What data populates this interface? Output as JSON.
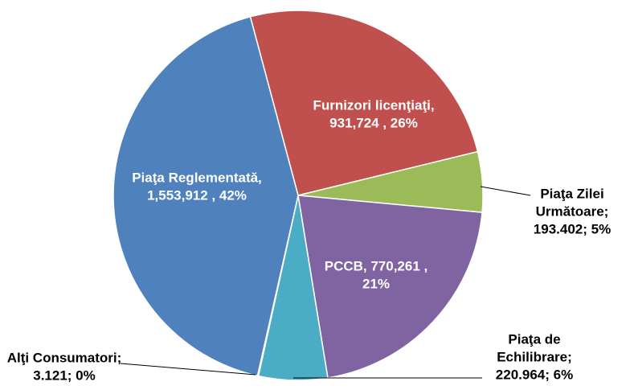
{
  "chart_data": {
    "type": "pie",
    "categories": [
      "Furnizori licenţiaţi",
      "Piaţa Zilei Următoare",
      "PCCB",
      "Piaţa de Echilibrare",
      "Alţi Consumatori",
      "Piaţa Reglementată"
    ],
    "labels": [
      [
        "Furnizori licenţiaţi,",
        "931,724 , 26%"
      ],
      [
        "Piaţa Zilei",
        "Următoare;",
        "193.402; 5%"
      ],
      [
        "PCCB,  770,261 ,",
        "21%"
      ],
      [
        "Piaţa de",
        "Echilibrare;",
        "220.964; 6%"
      ],
      [
        "Alţi Consumatori;",
        "3.121; 0%"
      ],
      [
        "Piaţa Reglementată,",
        "1,553,912 , 42%"
      ]
    ],
    "values": [
      931724,
      193402,
      770261,
      220964,
      3121,
      1553912
    ],
    "colors": [
      "#c0504d",
      "#9bbb59",
      "#8064a2",
      "#4bacc6",
      "#f79646",
      "#4f81bd"
    ]
  }
}
